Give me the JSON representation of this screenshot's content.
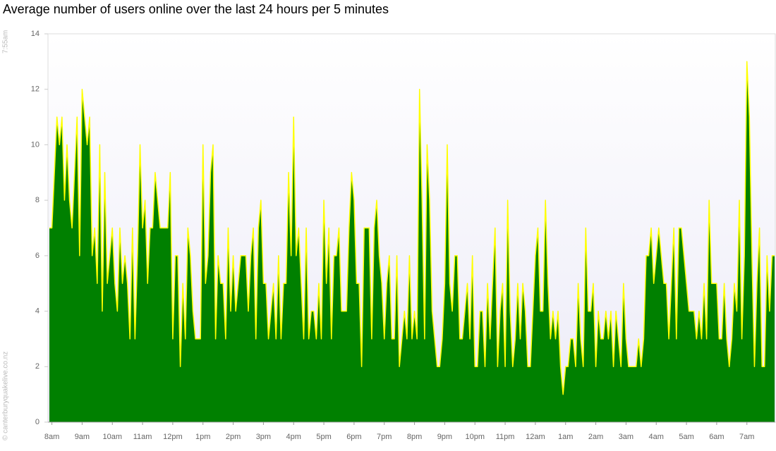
{
  "chart_data": {
    "type": "area",
    "title": "Average number of users online over the last 24 hours per 5 minutes",
    "timestamp": "7:55am",
    "credit": "© canterburyquakelive.co.nz",
    "fill_color": "#008000",
    "line_color": "#ffff00",
    "ylim": [
      0,
      14
    ],
    "yticks": [
      0,
      2,
      4,
      6,
      8,
      10,
      12,
      14
    ],
    "grid": false,
    "categories": [
      null,
      "8am",
      null,
      null,
      null,
      null,
      null,
      null,
      null,
      null,
      null,
      null,
      null,
      "9am",
      null,
      null,
      null,
      null,
      null,
      null,
      null,
      null,
      null,
      null,
      null,
      "10am",
      null,
      null,
      null,
      null,
      null,
      null,
      null,
      null,
      null,
      null,
      null,
      "11am",
      null,
      null,
      null,
      null,
      null,
      null,
      null,
      null,
      null,
      null,
      null,
      "12pm",
      null,
      null,
      null,
      null,
      null,
      null,
      null,
      null,
      null,
      null,
      null,
      "1pm",
      null,
      null,
      null,
      null,
      null,
      null,
      null,
      null,
      null,
      null,
      null,
      "2pm",
      null,
      null,
      null,
      null,
      null,
      null,
      null,
      null,
      null,
      null,
      null,
      "3pm",
      null,
      null,
      null,
      null,
      null,
      null,
      null,
      null,
      null,
      null,
      null,
      "4pm",
      null,
      null,
      null,
      null,
      null,
      null,
      null,
      null,
      null,
      null,
      null,
      "5pm",
      null,
      null,
      null,
      null,
      null,
      null,
      null,
      null,
      null,
      null,
      null,
      "6pm",
      null,
      null,
      null,
      null,
      null,
      null,
      null,
      null,
      null,
      null,
      null,
      "7pm",
      null,
      null,
      null,
      null,
      null,
      null,
      null,
      null,
      null,
      null,
      null,
      "8pm",
      null,
      null,
      null,
      null,
      null,
      null,
      null,
      null,
      null,
      null,
      null,
      "9pm",
      null,
      null,
      null,
      null,
      null,
      null,
      null,
      null,
      null,
      null,
      null,
      "10pm",
      null,
      null,
      null,
      null,
      null,
      null,
      null,
      null,
      null,
      null,
      null,
      "11pm",
      null,
      null,
      null,
      null,
      null,
      null,
      null,
      null,
      null,
      null,
      null,
      "12am",
      null,
      null,
      null,
      null,
      null,
      null,
      null,
      null,
      null,
      null,
      null,
      "1am",
      null,
      null,
      null,
      null,
      null,
      null,
      null,
      null,
      null,
      null,
      null,
      "2am",
      null,
      null,
      null,
      null,
      null,
      null,
      null,
      null,
      null,
      null,
      null,
      "3am",
      null,
      null,
      null,
      null,
      null,
      null,
      null,
      null,
      null,
      null,
      null,
      "4am",
      null,
      null,
      null,
      null,
      null,
      null,
      null,
      null,
      null,
      null,
      null,
      "5am",
      null,
      null,
      null,
      null,
      null,
      null,
      null,
      null,
      null,
      null,
      null,
      "6am",
      null,
      null,
      null,
      null,
      null,
      null,
      null,
      null,
      null,
      null,
      null,
      "7am",
      null,
      null,
      null,
      null,
      null,
      null,
      null,
      null,
      null,
      null,
      null
    ],
    "values": [
      7,
      7,
      9,
      11,
      10,
      11,
      8,
      10,
      8,
      7,
      9,
      11,
      6,
      12,
      11,
      10,
      11,
      6,
      7,
      5,
      10,
      4,
      9,
      5,
      6,
      7,
      5,
      4,
      7,
      5,
      6,
      5,
      3,
      7,
      3,
      6,
      10,
      7,
      8,
      5,
      7,
      7,
      9,
      8,
      7,
      7,
      7,
      7,
      9,
      3,
      6,
      6,
      2,
      5,
      3,
      7,
      6,
      4,
      3,
      3,
      3,
      10,
      5,
      6,
      9,
      10,
      3,
      6,
      5,
      5,
      3,
      7,
      4,
      6,
      4,
      5,
      6,
      6,
      6,
      4,
      6,
      7,
      3,
      7,
      8,
      5,
      5,
      3,
      4,
      5,
      3,
      6,
      3,
      5,
      5,
      9,
      6,
      11,
      6,
      7,
      5,
      3,
      7,
      3,
      4,
      4,
      3,
      5,
      3,
      8,
      5,
      7,
      3,
      6,
      6,
      7,
      4,
      4,
      4,
      7,
      9,
      8,
      5,
      5,
      2,
      7,
      7,
      7,
      3,
      7,
      8,
      6,
      5,
      3,
      5,
      6,
      3,
      3,
      6,
      2,
      3,
      4,
      3,
      6,
      3,
      4,
      3,
      12,
      8,
      3,
      10,
      8,
      4,
      3,
      2,
      2,
      3,
      5,
      10,
      5,
      4,
      6,
      6,
      3,
      3,
      4,
      5,
      3,
      6,
      2,
      2,
      4,
      4,
      2,
      5,
      3,
      5,
      7,
      2,
      4,
      5,
      2,
      8,
      4,
      2,
      3,
      5,
      3,
      5,
      4,
      2,
      2,
      4,
      6,
      7,
      4,
      4,
      8,
      5,
      3,
      4,
      3,
      4,
      2,
      1,
      2,
      2,
      3,
      3,
      2,
      5,
      3,
      2,
      7,
      4,
      4,
      5,
      2,
      4,
      3,
      3,
      4,
      3,
      4,
      2,
      4,
      3,
      2,
      5,
      3,
      2,
      2,
      2,
      2,
      3,
      2,
      3,
      6,
      6,
      7,
      5,
      6,
      7,
      6,
      5,
      5,
      3,
      5,
      7,
      3,
      7,
      7,
      6,
      5,
      4,
      4,
      4,
      3,
      4,
      3,
      5,
      3,
      8,
      5,
      5,
      5,
      3,
      3,
      5,
      3,
      2,
      3,
      5,
      4,
      8,
      3,
      6,
      13,
      11,
      6,
      2,
      5,
      7,
      2,
      2,
      6,
      4,
      6,
      6
    ]
  }
}
